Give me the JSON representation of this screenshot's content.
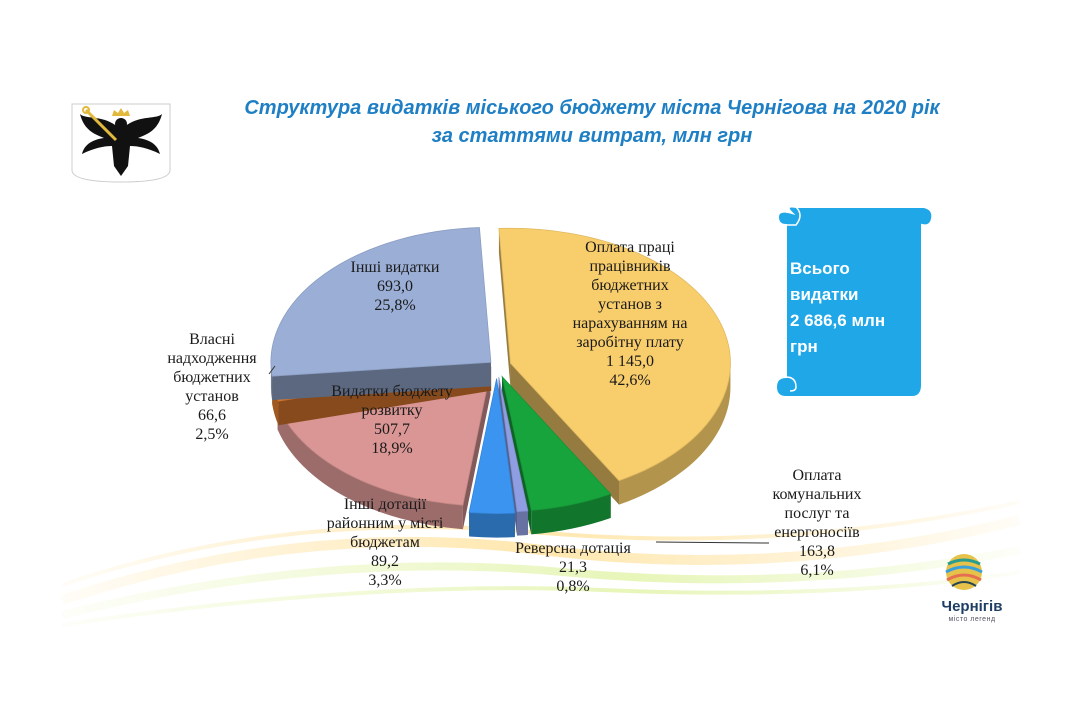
{
  "title": {
    "line1": "Структура видатків  міського бюджету міста Чернігова на 2020 рік",
    "line2": "за статтями  витрат, млн грн"
  },
  "total": {
    "line1": "Всього",
    "line2": "видатки",
    "line3": "2 686,6 млн",
    "line4": "грн"
  },
  "logo": {
    "name": "Чернігів",
    "tagline": "місто легенд"
  },
  "colors": {
    "title": "#1f7fc4",
    "scroll": "#1fa7e8",
    "wages": "#f8cd6b",
    "utilities": "#17a43c",
    "reverse": "#8f9ee3",
    "district": "#3a94f0",
    "development": "#d99694",
    "own_revenue": "#e07b2f",
    "other": "#9aaed6"
  },
  "chart_data": {
    "type": "pie",
    "title": "Структура видатків  міського бюджету міста Чернігова на 2020 рік за статтями  витрат, млн грн",
    "unit": "млн грн",
    "slices": [
      {
        "label": "Оплата праці працівників бюджетних установ з нарахуванням на заробітну плату",
        "value": 1145.0,
        "value_label": "1 145,0",
        "percent_label": "42,6%",
        "color": "#f8cd6b"
      },
      {
        "label": "Оплата комунальних послуг та енергоносіїв",
        "value": 163.8,
        "value_label": "163,8",
        "percent_label": "6,1%",
        "color": "#17a43c"
      },
      {
        "label": "Реверсна дотація",
        "value": 21.3,
        "value_label": "21,3",
        "percent_label": "0,8%",
        "color": "#8f9ee3"
      },
      {
        "label": "Інші дотації районним у місті бюджетам",
        "value": 89.2,
        "value_label": "89,2",
        "percent_label": "3,3%",
        "color": "#3a94f0"
      },
      {
        "label": "Видатки бюджету розвитку",
        "value": 507.7,
        "value_label": "507,7",
        "percent_label": "18,9%",
        "color": "#d99694"
      },
      {
        "label": "Власні надходження бюджетних установ",
        "value": 66.6,
        "value_label": "66,6",
        "percent_label": "2,5%",
        "color": "#e07b2f"
      },
      {
        "label": "Інші видатки",
        "value": 693.0,
        "value_label": "693,0",
        "percent_label": "25,8%",
        "color": "#9aaed6"
      }
    ]
  },
  "labels": {
    "wages": [
      "Оплата праці",
      "працівників",
      "бюджетних",
      "установ з",
      "нарахуванням на",
      "заробітну плату",
      "1 145,0",
      "42,6%"
    ],
    "utilities": [
      "Оплата",
      "комунальних",
      "послуг та",
      "енергоносіїв",
      "163,8",
      "6,1%"
    ],
    "reverse": [
      "Реверсна дотація",
      "21,3",
      "0,8%"
    ],
    "district": [
      "Інші дотації",
      "районним у місті",
      "бюджетам",
      "89,2",
      "3,3%"
    ],
    "development": [
      "Видатки бюджету",
      "розвитку",
      "507,7",
      "18,9%"
    ],
    "own_revenue": [
      "Власні",
      "надходження",
      "бюджетних",
      "установ",
      "66,6",
      "2,5%"
    ],
    "other": [
      "Інші видатки",
      "693,0",
      "25,8%"
    ]
  }
}
